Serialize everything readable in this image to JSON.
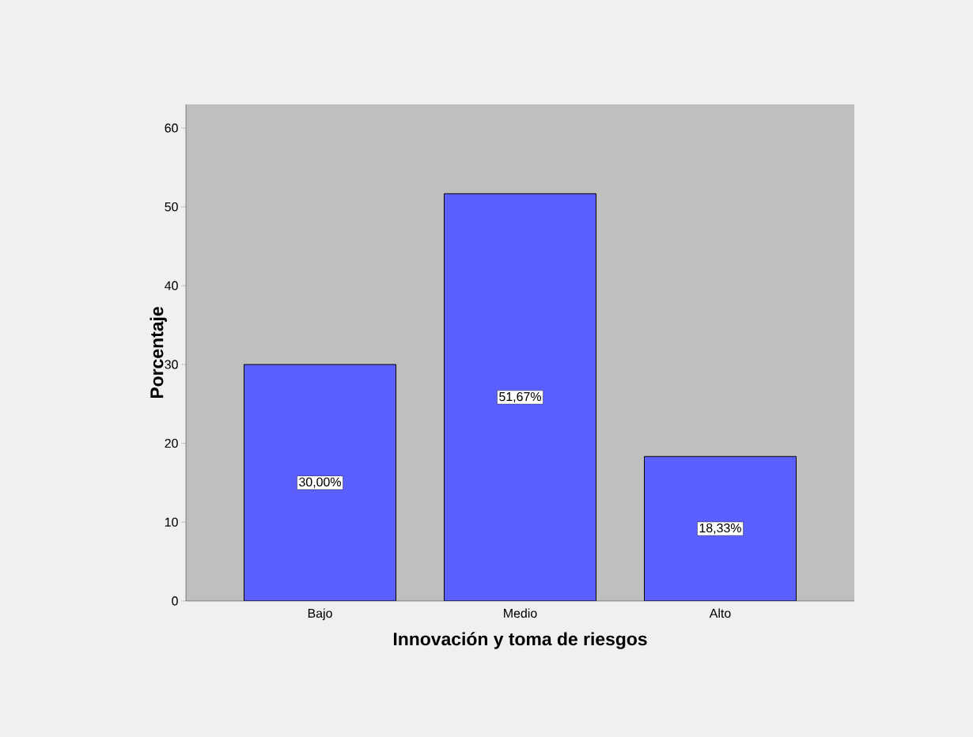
{
  "chart_data": {
    "type": "bar",
    "xlabel": "Innovación y toma de riesgos",
    "ylabel": "Porcentaje",
    "categories": [
      "Bajo",
      "Medio",
      "Alto"
    ],
    "values": [
      30.0,
      51.67,
      18.33
    ],
    "value_labels": [
      "30,00%",
      "51,67%",
      "18,33%"
    ],
    "color": "#5b5ffe",
    "ylim": [
      0,
      63
    ],
    "yticks": [
      0,
      10,
      20,
      30,
      40,
      50,
      60
    ]
  }
}
